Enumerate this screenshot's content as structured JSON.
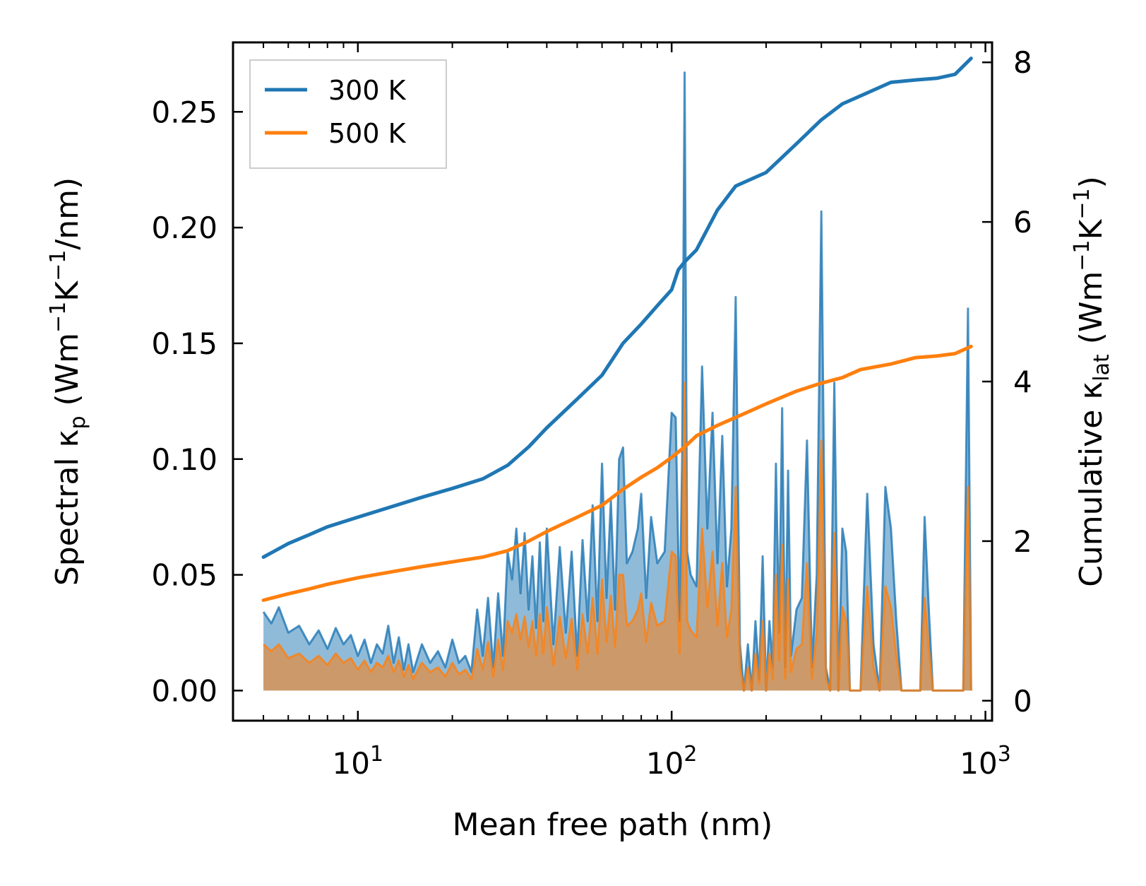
{
  "chart_data": {
    "type": "line",
    "xscale": "log",
    "xlabel": "Mean free path (nm)",
    "ylabel_left": {
      "main": "Spectral κ",
      "sub": "p",
      "unit": "(Wm",
      "e1": "−1",
      "k": "K",
      "e2": "−1",
      "tail": "/nm)"
    },
    "ylabel_right": {
      "main": "Cumulative κ",
      "sub": "lat",
      "unit": "(Wm",
      "e1": "−1",
      "k": "K",
      "e2": "−1",
      "tail": ")"
    },
    "xlim": [
      4,
      1050
    ],
    "ylim_left": [
      -0.013,
      0.28
    ],
    "ylim_right": [
      -0.25,
      8.25
    ],
    "x_ticks": [
      {
        "value": 10,
        "base": "10",
        "exp": "1"
      },
      {
        "value": 100,
        "base": "10",
        "exp": "2"
      },
      {
        "value": 1000,
        "base": "10",
        "exp": "3"
      }
    ],
    "y_left_ticks": [
      0.0,
      0.05,
      0.1,
      0.15,
      0.2,
      0.25
    ],
    "y_left_tick_labels": [
      "0.00",
      "0.05",
      "0.10",
      "0.15",
      "0.20",
      "0.25"
    ],
    "y_right_ticks": [
      0,
      2,
      4,
      6,
      8
    ],
    "y_right_tick_labels": [
      "0",
      "2",
      "4",
      "6",
      "8"
    ],
    "legend": [
      {
        "label": "300 K",
        "color": "#1f77b4"
      },
      {
        "label": "500 K",
        "color": "#ff7f0e"
      }
    ],
    "legend_position": "top-left",
    "cumulative_series": [
      {
        "name": "300 K",
        "color": "#1f77b4",
        "axis": "right",
        "x": [
          5,
          6,
          7,
          8,
          10,
          13,
          16,
          20,
          25,
          30,
          35,
          40,
          50,
          60,
          70,
          80,
          90,
          100,
          105,
          110,
          120,
          140,
          160,
          200,
          250,
          300,
          350,
          400,
          500,
          600,
          700,
          800,
          900
        ],
        "y": [
          1.8,
          1.97,
          2.08,
          2.18,
          2.3,
          2.44,
          2.55,
          2.66,
          2.78,
          2.95,
          3.18,
          3.42,
          3.78,
          4.08,
          4.48,
          4.72,
          4.95,
          5.15,
          5.4,
          5.5,
          5.65,
          6.15,
          6.45,
          6.62,
          6.98,
          7.28,
          7.48,
          7.58,
          7.75,
          7.78,
          7.8,
          7.85,
          8.05
        ]
      },
      {
        "name": "500 K",
        "color": "#ff7f0e",
        "axis": "right",
        "x": [
          5,
          6,
          7,
          8,
          10,
          13,
          16,
          20,
          25,
          30,
          35,
          40,
          50,
          60,
          70,
          80,
          90,
          100,
          110,
          120,
          140,
          160,
          200,
          250,
          300,
          350,
          400,
          500,
          600,
          700,
          800,
          900
        ],
        "y": [
          1.26,
          1.34,
          1.4,
          1.46,
          1.54,
          1.62,
          1.68,
          1.74,
          1.8,
          1.88,
          2.0,
          2.12,
          2.3,
          2.45,
          2.65,
          2.8,
          2.92,
          3.05,
          3.18,
          3.32,
          3.45,
          3.55,
          3.72,
          3.88,
          3.98,
          4.05,
          4.15,
          4.22,
          4.3,
          4.32,
          4.35,
          4.44
        ]
      }
    ],
    "spectral_series": [
      {
        "name": "300 K",
        "color": "#1f77b4",
        "axis": "left",
        "x": [
          5,
          5.3,
          5.6,
          6,
          6.5,
          7,
          7.5,
          8,
          8.5,
          9,
          9.5,
          10,
          10.5,
          11,
          11.5,
          12,
          12.5,
          13,
          13.5,
          14,
          14.5,
          15,
          16,
          17,
          18,
          19,
          20,
          21,
          22,
          23,
          24,
          25,
          26,
          27,
          28,
          29,
          30,
          31,
          32,
          33,
          34,
          35,
          36,
          37,
          38,
          39,
          40,
          42,
          44,
          46,
          48,
          50,
          52,
          54,
          56,
          58,
          60,
          62,
          64,
          66,
          68,
          70,
          72,
          75,
          78,
          80,
          83,
          86,
          90,
          95,
          100,
          103,
          106,
          108,
          110,
          112,
          115,
          120,
          125,
          130,
          135,
          140,
          145,
          150,
          155,
          160,
          165,
          170,
          175,
          180,
          185,
          190,
          195,
          200,
          205,
          210,
          215,
          220,
          225,
          230,
          235,
          240,
          250,
          260,
          270,
          280,
          290,
          300,
          310,
          320,
          330,
          340,
          350,
          360,
          370,
          380,
          400,
          420,
          440,
          460,
          480,
          500,
          520,
          540,
          560,
          580,
          600,
          620,
          640,
          660,
          680,
          700,
          750,
          800,
          850,
          880,
          900
        ],
        "y": [
          0.034,
          0.029,
          0.036,
          0.025,
          0.028,
          0.02,
          0.026,
          0.018,
          0.027,
          0.02,
          0.024,
          0.015,
          0.022,
          0.012,
          0.02,
          0.016,
          0.028,
          0.012,
          0.023,
          0.009,
          0.02,
          0.008,
          0.02,
          0.012,
          0.017,
          0.01,
          0.022,
          0.012,
          0.015,
          0.008,
          0.035,
          0.015,
          0.04,
          0.01,
          0.042,
          0.015,
          0.06,
          0.048,
          0.07,
          0.042,
          0.068,
          0.035,
          0.058,
          0.027,
          0.064,
          0.03,
          0.07,
          0.02,
          0.062,
          0.025,
          0.06,
          0.015,
          0.065,
          0.03,
          0.08,
          0.03,
          0.098,
          0.04,
          0.082,
          0.035,
          0.1,
          0.105,
          0.055,
          0.06,
          0.07,
          0.085,
          0.04,
          0.075,
          0.055,
          0.06,
          0.12,
          0.118,
          0.03,
          0.1,
          0.267,
          0.06,
          0.05,
          0.045,
          0.14,
          0.07,
          0.12,
          0.055,
          0.11,
          0.045,
          0.07,
          0.17,
          0.02,
          0.0,
          0.02,
          0.0,
          0.03,
          0.005,
          0.058,
          0.0,
          0.03,
          0.01,
          0.098,
          0.025,
          0.122,
          0.01,
          0.095,
          0.015,
          0.035,
          0.04,
          0.108,
          0.01,
          0.05,
          0.207,
          0.01,
          0.0,
          0.133,
          0.0,
          0.07,
          0.06,
          0.0,
          0.0,
          0.0,
          0.085,
          0.02,
          0.0,
          0.088,
          0.07,
          0.03,
          0.0,
          0.0,
          0.0,
          0.0,
          0.0,
          0.075,
          0.035,
          0.0,
          0.0,
          0.0,
          0.0,
          0.0,
          0.165,
          0.0
        ]
      },
      {
        "name": "500 K",
        "color": "#ff7f0e",
        "axis": "left",
        "x": [
          5,
          5.3,
          5.6,
          6,
          6.5,
          7,
          7.5,
          8,
          8.5,
          9,
          9.5,
          10,
          10.5,
          11,
          11.5,
          12,
          12.5,
          13,
          13.5,
          14,
          14.5,
          15,
          16,
          17,
          18,
          19,
          20,
          21,
          22,
          23,
          24,
          25,
          26,
          27,
          28,
          29,
          30,
          31,
          32,
          33,
          34,
          35,
          36,
          37,
          38,
          39,
          40,
          42,
          44,
          46,
          48,
          50,
          52,
          54,
          56,
          58,
          60,
          62,
          64,
          66,
          68,
          70,
          72,
          75,
          78,
          80,
          83,
          86,
          90,
          95,
          100,
          103,
          106,
          108,
          110,
          112,
          115,
          120,
          125,
          130,
          135,
          140,
          145,
          150,
          155,
          160,
          165,
          170,
          175,
          180,
          185,
          190,
          195,
          200,
          205,
          210,
          215,
          220,
          225,
          230,
          235,
          240,
          250,
          260,
          270,
          280,
          290,
          300,
          310,
          320,
          330,
          340,
          350,
          360,
          370,
          380,
          400,
          420,
          440,
          460,
          480,
          500,
          520,
          540,
          560,
          580,
          600,
          620,
          640,
          660,
          680,
          700,
          750,
          800,
          850,
          880,
          900
        ],
        "y": [
          0.02,
          0.017,
          0.02,
          0.014,
          0.016,
          0.012,
          0.015,
          0.011,
          0.016,
          0.012,
          0.014,
          0.009,
          0.013,
          0.008,
          0.012,
          0.01,
          0.015,
          0.008,
          0.013,
          0.006,
          0.011,
          0.005,
          0.012,
          0.008,
          0.01,
          0.006,
          0.012,
          0.007,
          0.009,
          0.005,
          0.018,
          0.009,
          0.021,
          0.006,
          0.022,
          0.009,
          0.03,
          0.025,
          0.033,
          0.022,
          0.032,
          0.019,
          0.03,
          0.015,
          0.033,
          0.016,
          0.036,
          0.011,
          0.032,
          0.014,
          0.031,
          0.009,
          0.033,
          0.016,
          0.04,
          0.016,
          0.048,
          0.021,
          0.041,
          0.019,
          0.05,
          0.05,
          0.028,
          0.03,
          0.035,
          0.042,
          0.021,
          0.038,
          0.028,
          0.03,
          0.06,
          0.058,
          0.016,
          0.05,
          0.133,
          0.03,
          0.026,
          0.023,
          0.07,
          0.036,
          0.06,
          0.028,
          0.055,
          0.023,
          0.035,
          0.088,
          0.01,
          0.0,
          0.01,
          0.0,
          0.016,
          0.003,
          0.03,
          0.0,
          0.016,
          0.005,
          0.05,
          0.013,
          0.063,
          0.005,
          0.048,
          0.008,
          0.018,
          0.02,
          0.055,
          0.005,
          0.025,
          0.108,
          0.005,
          0.0,
          0.068,
          0.0,
          0.036,
          0.03,
          0.0,
          0.0,
          0.0,
          0.045,
          0.01,
          0.0,
          0.045,
          0.036,
          0.015,
          0.0,
          0.0,
          0.0,
          0.0,
          0.0,
          0.04,
          0.018,
          0.0,
          0.0,
          0.0,
          0.0,
          0.0,
          0.088,
          0.0
        ]
      }
    ]
  }
}
